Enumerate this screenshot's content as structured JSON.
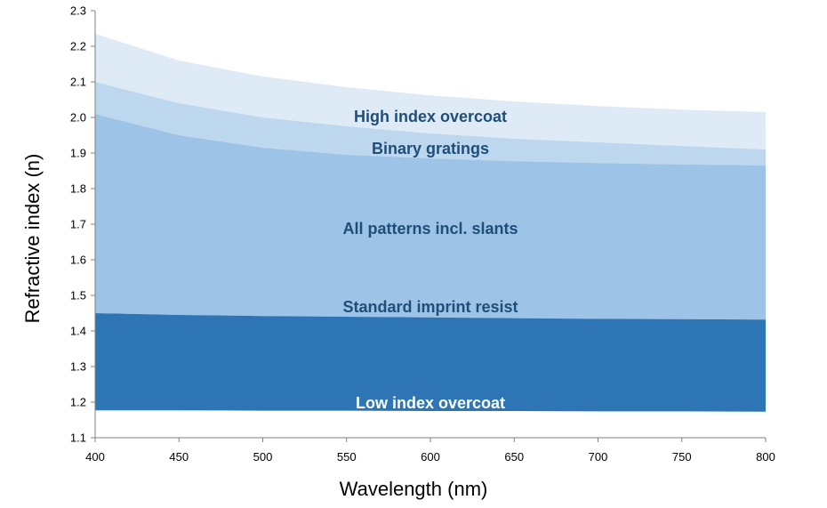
{
  "chart_data": {
    "type": "area",
    "xlabel": "Wavelength (nm)",
    "ylabel": "Refractive index (n)",
    "xlim": [
      400,
      800
    ],
    "ylim": [
      1.1,
      2.3
    ],
    "x_ticks": [
      "400",
      "450",
      "500",
      "550",
      "600",
      "650",
      "700",
      "750",
      "800"
    ],
    "y_ticks": [
      "1.1",
      "1.2",
      "1.3",
      "1.4",
      "1.5",
      "1.6",
      "1.7",
      "1.8",
      "1.9",
      "2.0",
      "2.1",
      "2.2",
      "2.3"
    ],
    "grid": false,
    "legend": "none",
    "bands": [
      {
        "label": "High index overcoat",
        "color": "#deebf6",
        "label_color": "#1f4e79",
        "x": [
          400,
          450,
          500,
          550,
          600,
          650,
          700,
          750,
          800
        ],
        "lower": [
          2.1,
          2.04,
          2.0,
          1.975,
          1.955,
          1.94,
          1.93,
          1.92,
          1.91
        ],
        "upper": [
          2.235,
          2.16,
          2.115,
          2.085,
          2.062,
          2.045,
          2.032,
          2.022,
          2.015
        ],
        "label_x": 600,
        "label_y": 2.0
      },
      {
        "label": "Binary gratings",
        "color": "#bdd7ee",
        "label_color": "#1f4e79",
        "x": [
          400,
          450,
          500,
          550,
          600,
          650,
          700,
          750,
          800
        ],
        "lower": [
          2.01,
          1.95,
          1.915,
          1.895,
          1.885,
          1.877,
          1.872,
          1.868,
          1.865
        ],
        "upper": [
          2.1,
          2.04,
          2.0,
          1.975,
          1.955,
          1.94,
          1.93,
          1.92,
          1.91
        ],
        "label_x": 600,
        "label_y": 1.91
      },
      {
        "label": "All patterns incl. slants",
        "color": "#9dc3e6",
        "label_color": "#1f4e79",
        "x": [
          400,
          450,
          500,
          550,
          600,
          650,
          700,
          750,
          800
        ],
        "lower": [
          1.45,
          1.445,
          1.442,
          1.44,
          1.438,
          1.436,
          1.434,
          1.433,
          1.432
        ],
        "upper": [
          2.01,
          1.95,
          1.915,
          1.895,
          1.885,
          1.877,
          1.872,
          1.868,
          1.865
        ],
        "label_x": 600,
        "label_y": 1.685
      },
      {
        "label": "Standard imprint resist",
        "color": "#9dc3e6",
        "label_color": "#1f4e79",
        "x": [],
        "lower": [],
        "upper": [],
        "label_x": 600,
        "label_y": 1.465
      },
      {
        "label": "Low index overcoat",
        "color": "#2e75b6",
        "label_color": "#ffffff",
        "x": [
          400,
          450,
          500,
          550,
          600,
          650,
          700,
          750,
          800
        ],
        "lower": [
          1.177,
          1.177,
          1.176,
          1.176,
          1.175,
          1.175,
          1.174,
          1.174,
          1.173
        ],
        "upper": [
          1.45,
          1.445,
          1.442,
          1.44,
          1.438,
          1.436,
          1.434,
          1.433,
          1.432
        ],
        "label_x": 600,
        "label_y": 1.195
      }
    ]
  }
}
